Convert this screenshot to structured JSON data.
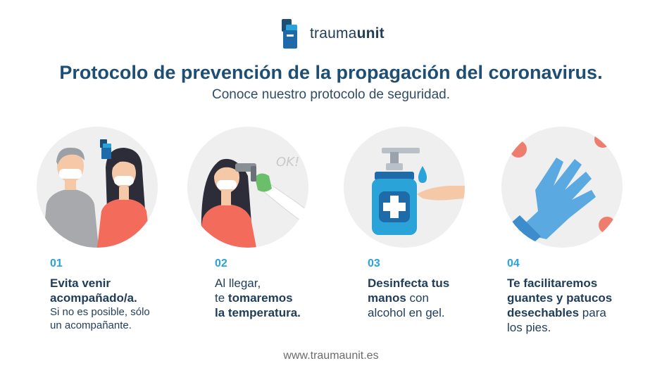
{
  "brand": {
    "name_light": "trauma",
    "name_bold": "unit"
  },
  "header": {
    "title": "Protocolo de prevención de la propagación del coronavirus.",
    "subtitle": "Conoce nuestro protocolo de seguridad."
  },
  "steps": [
    {
      "number": "01",
      "line1_bold": "Evita venir",
      "line2_bold": "acompañado/a.",
      "line3": "Si no es posible, sólo",
      "line4": "un acompañante."
    },
    {
      "number": "02",
      "line1": "Al llegar,",
      "line2_pre": "te ",
      "line2_bold": "tomaremos",
      "line3_bold": "la temperatura."
    },
    {
      "number": "03",
      "line1_bold": "Desinfecta tus",
      "line2_bold": "manos",
      "line2_post": " con",
      "line3": "alcohol en gel."
    },
    {
      "number": "04",
      "line1_bold": "Te facilitaremos",
      "line2_bold": "guantes y patucos",
      "line3_bold": "desechables",
      "line3_post": " para",
      "line4": "los pies."
    }
  ],
  "illustration_text": {
    "ok": "OK!"
  },
  "footer": {
    "url": "www.traumaunit.es"
  },
  "colors": {
    "navy": "#1f4e74",
    "accent": "#29a3d8",
    "coral": "#f26b5b",
    "glove": "#5aa9e0"
  }
}
